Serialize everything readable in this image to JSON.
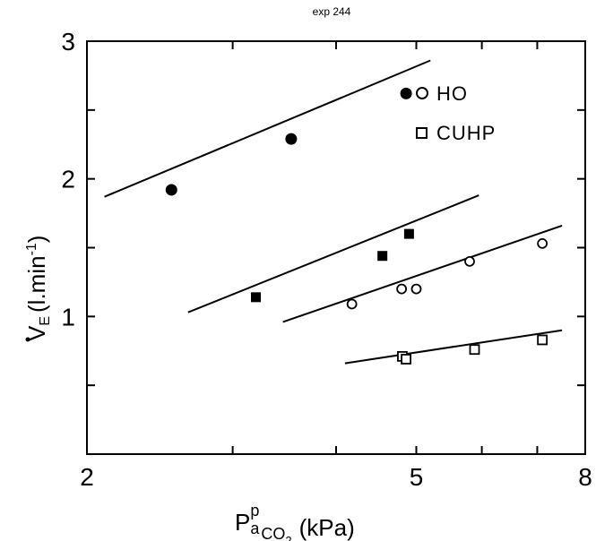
{
  "chart_data": {
    "type": "scatter",
    "title": "exp 244",
    "xlabel": {
      "main": "P",
      "sub": "a",
      "sup": "p",
      "sub2": "CO",
      "sub3": "2",
      "unit": "(kPa)"
    },
    "ylabel": {
      "main": "V",
      "dot": "·",
      "sub": "E",
      "unit": "(l.min",
      "sup": "-1",
      "close": ")"
    },
    "x_range": [
      2,
      8
    ],
    "y_range": [
      0,
      3
    ],
    "x_ticks": [
      2,
      3,
      4,
      5,
      6,
      7,
      8
    ],
    "x_tick_labels": [
      "2",
      "",
      "",
      "5",
      "",
      "",
      "8"
    ],
    "y_ticks": [
      0,
      0.5,
      1,
      1.5,
      2,
      2.5,
      3
    ],
    "y_tick_labels": [
      "",
      "",
      "1",
      "",
      "2",
      "",
      "3"
    ],
    "legend": [
      {
        "label": "HO",
        "marker": "open-circle"
      },
      {
        "label": "CUHP",
        "marker": "open-square"
      }
    ],
    "legend_position": "top-right",
    "series": [
      {
        "marker": "filled-circle",
        "points": [
          [
            2.53,
            1.92
          ],
          [
            3.53,
            2.29
          ],
          [
            4.86,
            2.62
          ]
        ],
        "fit_line": [
          [
            2.1,
            1.87
          ],
          [
            5.2,
            2.86
          ]
        ]
      },
      {
        "marker": "filled-square",
        "points": [
          [
            3.2,
            1.14
          ],
          [
            4.55,
            1.44
          ],
          [
            4.9,
            1.6
          ]
        ],
        "fit_line": [
          [
            2.65,
            1.03
          ],
          [
            5.95,
            1.88
          ]
        ]
      },
      {
        "label": "HO",
        "marker": "open-circle",
        "points": [
          [
            4.18,
            1.09
          ],
          [
            4.8,
            1.2
          ],
          [
            5.0,
            1.2
          ],
          [
            5.8,
            1.4
          ],
          [
            7.1,
            1.53
          ]
        ],
        "fit_line": [
          [
            3.45,
            0.96
          ],
          [
            7.5,
            1.66
          ]
        ]
      },
      {
        "label": "CUHP",
        "marker": "open-square",
        "points": [
          [
            4.81,
            0.71
          ],
          [
            4.86,
            0.69
          ],
          [
            5.88,
            0.76
          ],
          [
            7.1,
            0.83
          ]
        ],
        "fit_line": [
          [
            4.1,
            0.66
          ],
          [
            7.5,
            0.9
          ]
        ]
      }
    ]
  }
}
